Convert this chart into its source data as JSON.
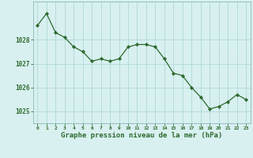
{
  "hours": [
    0,
    1,
    2,
    3,
    4,
    5,
    6,
    7,
    8,
    9,
    10,
    11,
    12,
    13,
    14,
    15,
    16,
    17,
    18,
    19,
    20,
    21,
    22,
    23
  ],
  "pressure": [
    1028.6,
    1029.1,
    1028.3,
    1028.1,
    1027.7,
    1027.5,
    1027.1,
    1027.2,
    1027.1,
    1027.2,
    1027.7,
    1027.8,
    1027.8,
    1027.7,
    1027.2,
    1026.6,
    1026.5,
    1026.0,
    1025.6,
    1025.1,
    1025.2,
    1025.4,
    1025.7,
    1025.5
  ],
  "line_color": "#2d6a2d",
  "marker_color": "#2d6a2d",
  "bg_color": "#d8f0f0",
  "grid_color": "#b0d8d8",
  "xlabel": "Graphe pression niveau de la mer (hPa)",
  "xlabel_color": "#2d6a2d",
  "tick_color": "#2d6a2d",
  "ytick_labels": [
    1025,
    1026,
    1027,
    1028
  ],
  "ylim": [
    1024.5,
    1029.6
  ],
  "xlim": [
    -0.5,
    23.5
  ],
  "axis_color": "#8ab8b8",
  "figwidth": 3.2,
  "figheight": 2.0,
  "dpi": 100
}
